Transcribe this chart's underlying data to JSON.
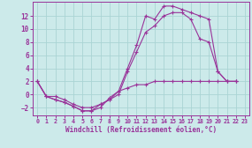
{
  "xlabel": "Windchill (Refroidissement éolien,°C)",
  "background_color": "#cceaea",
  "grid_color": "#aad4d4",
  "line_color": "#993399",
  "xlim": [
    -0.5,
    23.5
  ],
  "ylim": [
    -3.2,
    14.2
  ],
  "yticks": [
    -2,
    0,
    2,
    4,
    6,
    8,
    10,
    12
  ],
  "xticks": [
    0,
    1,
    2,
    3,
    4,
    5,
    6,
    7,
    8,
    9,
    10,
    11,
    12,
    13,
    14,
    15,
    16,
    17,
    18,
    19,
    20,
    21,
    22,
    23
  ],
  "series1_x": [
    0,
    1,
    2,
    3,
    4,
    5,
    6,
    7,
    8,
    9,
    10,
    11,
    12,
    13,
    14,
    15,
    16,
    17,
    18,
    19,
    20,
    21,
    22
  ],
  "series1_y": [
    2,
    -0.3,
    -0.3,
    -0.8,
    -1.5,
    -2.0,
    -2.0,
    -1.5,
    -0.8,
    0.5,
    4.0,
    7.5,
    12.0,
    11.5,
    13.5,
    13.5,
    13.0,
    12.5,
    12.0,
    11.5,
    3.5,
    2.0,
    2.0
  ],
  "series2_x": [
    0,
    1,
    2,
    3,
    4,
    5,
    6,
    7,
    8,
    9,
    10,
    11,
    12,
    13,
    14,
    15,
    16,
    17,
    18,
    19,
    20,
    21,
    22
  ],
  "series2_y": [
    2,
    -0.3,
    -0.8,
    -1.2,
    -1.8,
    -2.5,
    -2.5,
    -1.5,
    -0.8,
    0.0,
    3.5,
    6.5,
    9.5,
    10.5,
    12.0,
    12.5,
    12.5,
    11.5,
    8.5,
    8.0,
    3.5,
    2.0,
    2.0
  ],
  "series3_x": [
    0,
    1,
    2,
    3,
    4,
    5,
    6,
    7,
    8,
    9,
    10,
    11,
    12,
    13,
    14,
    15,
    16,
    17,
    18,
    19,
    20,
    21,
    22
  ],
  "series3_y": [
    2,
    -0.3,
    -0.8,
    -1.2,
    -1.8,
    -2.5,
    -2.5,
    -2.0,
    -0.5,
    0.5,
    1.0,
    1.5,
    1.5,
    2.0,
    2.0,
    2.0,
    2.0,
    2.0,
    2.0,
    2.0,
    2.0,
    2.0,
    2.0
  ]
}
